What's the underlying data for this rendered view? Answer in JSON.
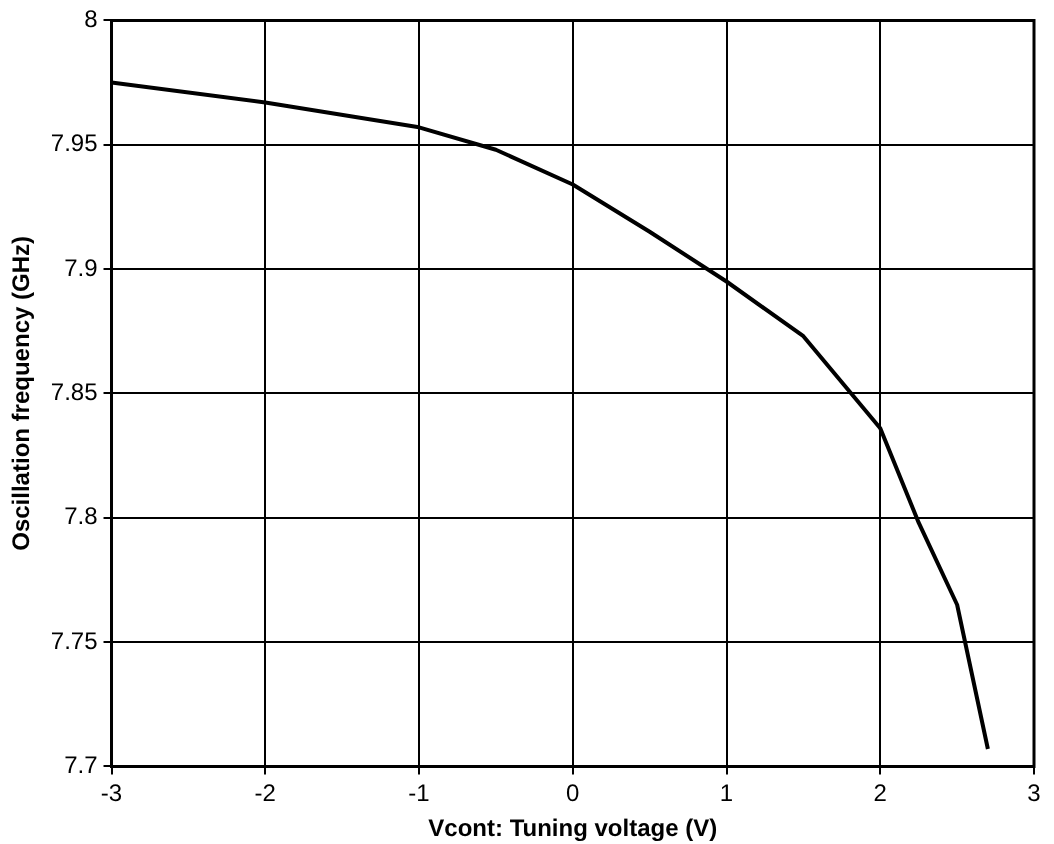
{
  "chart_data": {
    "type": "line",
    "xlabel": "Vcont: Tuning voltage (V)",
    "ylabel": "Oscillation frequency (GHz)",
    "x": [
      -3,
      -2,
      -1,
      -0.5,
      0,
      0.5,
      1,
      1.5,
      2,
      2.25,
      2.5,
      2.7
    ],
    "values": [
      7.975,
      7.967,
      7.957,
      7.948,
      7.934,
      7.915,
      7.895,
      7.873,
      7.836,
      7.798,
      7.765,
      7.707
    ],
    "color": "#000000",
    "xlim": [
      -3,
      3
    ],
    "xticks": [
      -3,
      -2,
      -1,
      0,
      1,
      2,
      3
    ],
    "ylim": [
      7.7,
      8
    ],
    "yticks": [
      7.7,
      7.75,
      7.8,
      7.85,
      7.9,
      7.95,
      8
    ],
    "grid": true,
    "line_style": "solid",
    "marker": "none",
    "legend": false
  }
}
